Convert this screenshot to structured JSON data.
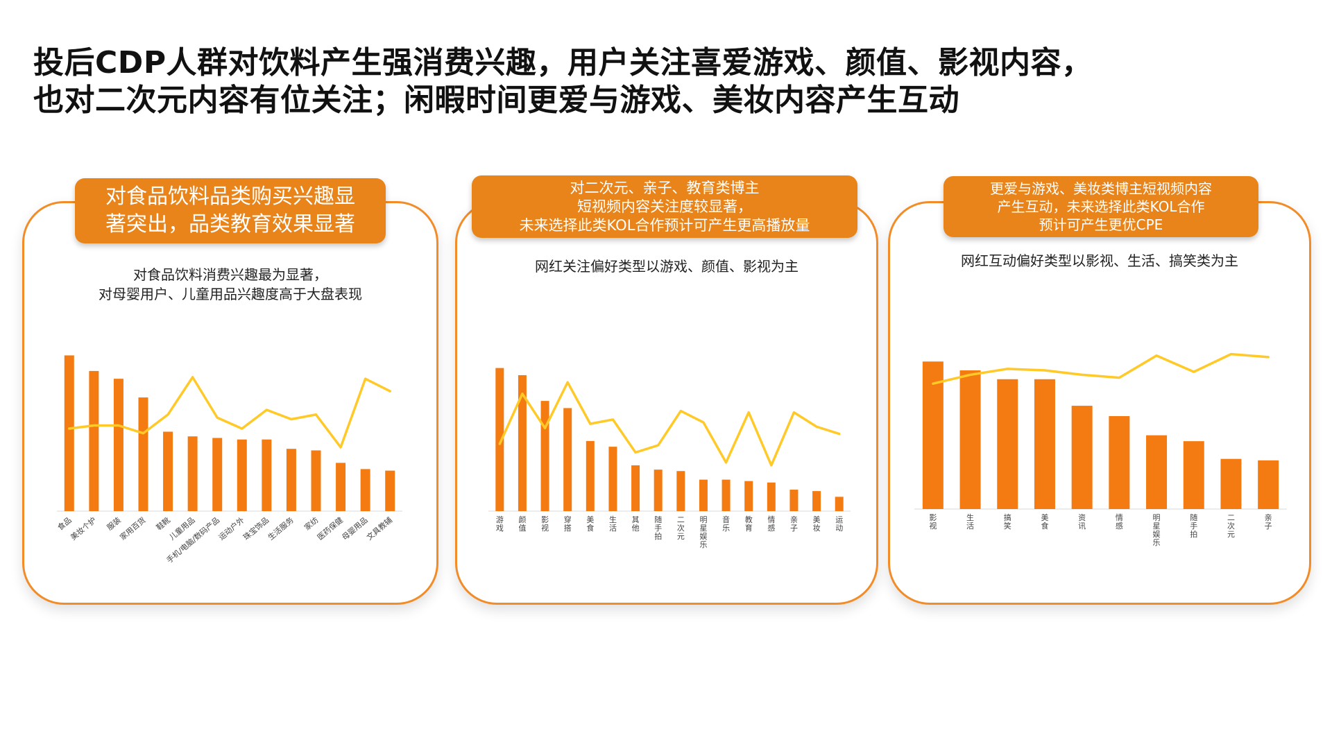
{
  "title": {
    "line1": "投后CDP人群对饮料产生强消费兴趣，用户关注喜爱游戏、颜值、影视内容，",
    "line2": "也对二次元内容有位关注；闲暇时间更爱与游戏、美妆内容产生互动"
  },
  "colors": {
    "bar": "#F47B12",
    "line": "#FFC928",
    "border": "#F28C28",
    "banner": "#E8841A"
  },
  "panels": [
    {
      "banner": [
        "对食品饮料品类购买兴趣显",
        "著突出，品类教育效果显著"
      ],
      "subtitle": [
        "对食品饮料消费兴趣最为显著，",
        "对母婴用户、儿童用品兴趣度高于大盘表现"
      ]
    },
    {
      "banner": [
        "对二次元、亲子、教育类博主",
        "短视频内容关注度较显著，",
        "未来选择此类KOL合作预计可产生更高播放量"
      ],
      "subtitle": [
        "网红关注偏好类型以游戏、颜值、影视为主"
      ]
    },
    {
      "banner": [
        "更爱与游戏、美妆类博主短视频内容",
        "产生互动，未来选择此类KOL合作",
        "预计可产生更优CPE"
      ],
      "subtitle": [
        "网红互动偏好类型以影视、生活、搞笑类为主"
      ]
    }
  ],
  "chart_data": [
    {
      "type": "bar",
      "label_orientation": "rotated",
      "categories": [
        "食品",
        "美妆个护",
        "服装",
        "家用百货",
        "鞋靴",
        "儿童用品",
        "手机/电脑/数码产品",
        "运动户外",
        "珠宝饰品",
        "生活服务",
        "家纺",
        "医药保健",
        "母婴用品",
        "文具教辅"
      ],
      "series": [
        {
          "values": [
            100,
            90,
            85,
            73,
            51,
            48,
            47,
            46,
            46,
            40,
            39,
            31,
            27,
            26
          ]
        },
        {
          "type": "line",
          "values": [
            53,
            55,
            55,
            50,
            62,
            86,
            60,
            53,
            65,
            59,
            62,
            41,
            85,
            77
          ]
        }
      ],
      "ylim": [
        0,
        110
      ]
    },
    {
      "type": "bar",
      "label_orientation": "vertical",
      "categories": [
        "游戏",
        "颜值",
        "影视",
        "穿搭",
        "美食",
        "生活",
        "其他",
        "随手拍",
        "二次元",
        "明星娱乐",
        "音乐",
        "教育",
        "情感",
        "亲子",
        "美妆",
        "运动"
      ],
      "series": [
        {
          "values": [
            100,
            95,
            77,
            72,
            49,
            45,
            32,
            29,
            28,
            22,
            22,
            21,
            20,
            15,
            14,
            10
          ]
        },
        {
          "type": "line",
          "values": [
            47,
            82,
            58,
            90,
            61,
            64,
            41,
            46,
            70,
            62,
            34,
            69,
            32,
            69,
            59,
            54
          ]
        }
      ],
      "ylim": [
        0,
        110
      ]
    },
    {
      "type": "bar",
      "label_orientation": "vertical",
      "categories": [
        "影视",
        "生活",
        "搞笑",
        "美食",
        "资讯",
        "情感",
        "明星娱乐",
        "随手拍",
        "二次元",
        "亲子"
      ],
      "series": [
        {
          "values": [
            100,
            94,
            88,
            88,
            70,
            63,
            50,
            46,
            34,
            33
          ]
        },
        {
          "type": "line",
          "values": [
            85,
            91,
            95,
            94,
            91,
            89,
            104,
            93,
            105,
            103
          ]
        }
      ],
      "ylim": [
        0,
        110
      ]
    }
  ]
}
